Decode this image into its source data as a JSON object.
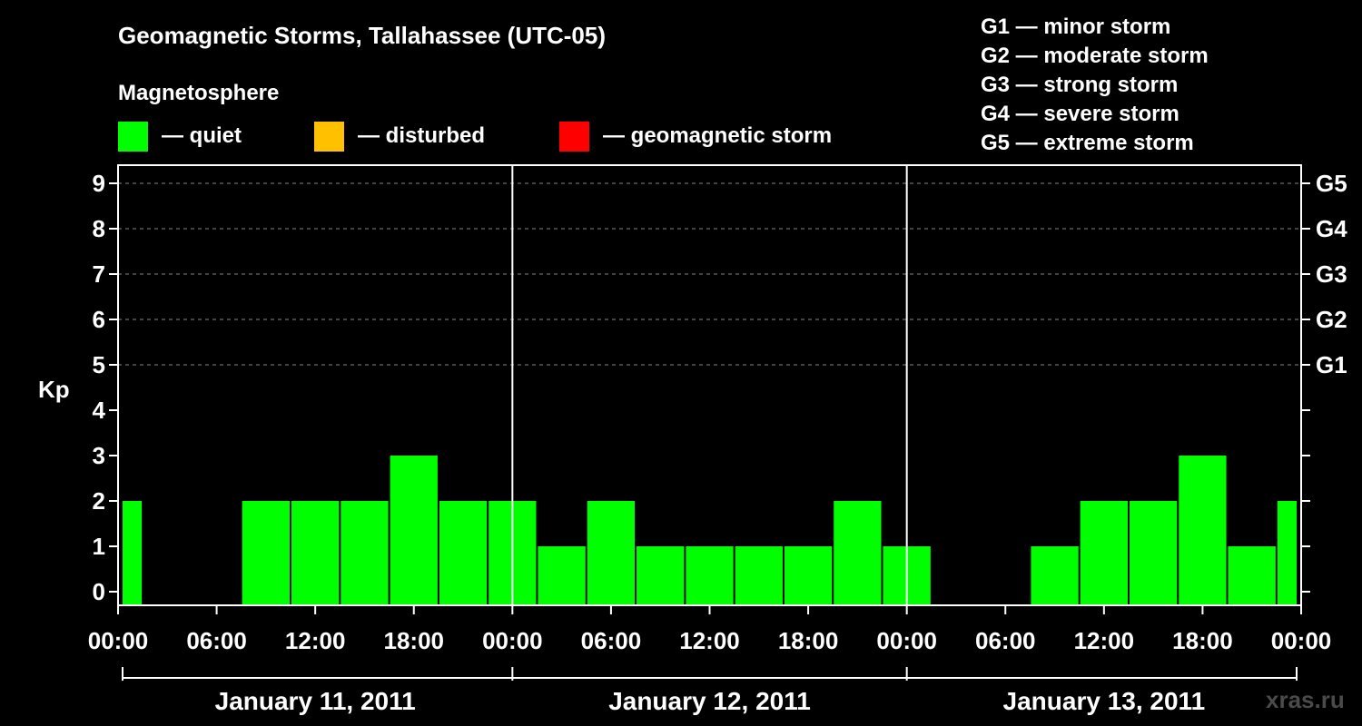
{
  "chart_data": {
    "type": "bar",
    "title": "Geomagnetic Storms, Tallahassee (UTC-05)",
    "legend": {
      "heading": "Magnetosphere",
      "placement": "top-left",
      "items": [
        {
          "label": "— quiet",
          "color": "#00ff00"
        },
        {
          "label": "— disturbed",
          "color": "#ffc000"
        },
        {
          "label": "— geomagnetic storm",
          "color": "#ff0000"
        }
      ]
    },
    "storm_scale": [
      "G1 — minor storm",
      "G2 — moderate storm",
      "G3 — strong storm",
      "G4 — severe storm",
      "G5 — extreme storm"
    ],
    "ylabel": "Kp",
    "ylim": [
      0,
      9
    ],
    "y_ticks": [
      "0",
      "1",
      "2",
      "3",
      "4",
      "5",
      "6",
      "7",
      "8",
      "9"
    ],
    "right_axis": [
      {
        "kp": 5,
        "label": "G1"
      },
      {
        "kp": 6,
        "label": "G2"
      },
      {
        "kp": 7,
        "label": "G3"
      },
      {
        "kp": 8,
        "label": "G4"
      },
      {
        "kp": 9,
        "label": "G5"
      }
    ],
    "grid": "dashed horizontal at Kp 5-9",
    "x_ticks": [
      "00:00",
      "06:00",
      "12:00",
      "18:00",
      "00:00",
      "06:00",
      "12:00",
      "18:00",
      "00:00",
      "06:00",
      "12:00",
      "18:00",
      "00:00"
    ],
    "days": [
      "January 11, 2011",
      "January 12, 2011",
      "January 13, 2011"
    ],
    "interval_hours": 3,
    "series": [
      {
        "values": [
          2,
          0,
          0,
          2,
          2,
          2,
          3,
          2,
          2,
          1,
          2,
          1,
          1,
          1,
          1,
          2,
          1,
          0,
          0,
          1,
          2,
          2,
          3,
          1,
          2
        ]
      }
    ],
    "watermark": "xras.ru"
  }
}
